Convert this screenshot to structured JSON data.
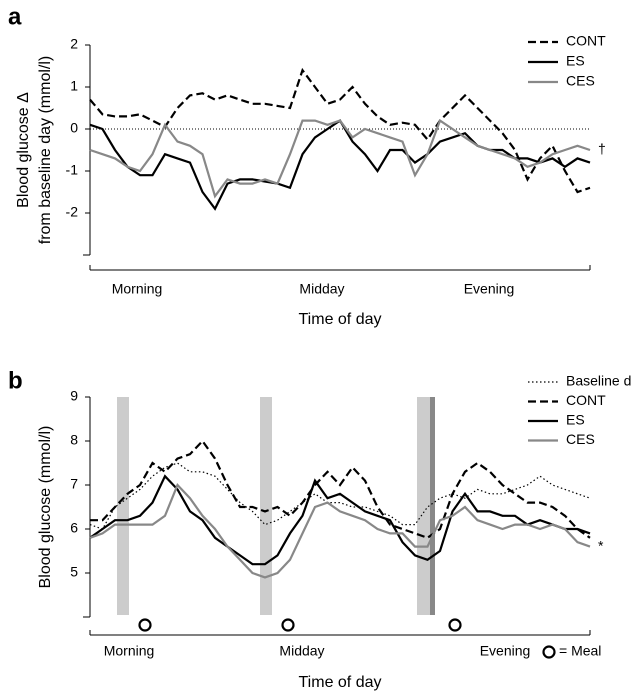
{
  "chart_data": [
    {
      "type": "line",
      "panel_label": "a",
      "ylabel": [
        "Blood glucose Δ",
        "from baseline day (mmol/l)"
      ],
      "xlabel": "Time of day",
      "xlim": [
        0,
        100
      ],
      "xticks": [
        {
          "value": 9.4,
          "label": "Morning"
        },
        {
          "value": 46.4,
          "label": "Midday"
        },
        {
          "value": 79.8,
          "label": "Evening"
        }
      ],
      "ylim": [
        -3,
        2
      ],
      "yticks": [
        -2,
        -1,
        0,
        1,
        2
      ],
      "reference_line": 0,
      "legend": "upper right",
      "annotation": "†",
      "x": [
        0,
        2.5,
        5,
        7.5,
        10,
        12.5,
        15,
        17.5,
        20,
        22.5,
        25,
        27.5,
        30,
        32.5,
        35,
        37.5,
        40,
        42.5,
        45,
        47.5,
        50,
        52.5,
        55,
        57.5,
        60,
        62.5,
        65,
        67.5,
        70,
        72.5,
        75,
        77.5,
        80,
        82.5,
        85,
        87.5,
        90,
        92.5,
        95,
        97.5,
        100
      ],
      "series": [
        {
          "name": "CONT",
          "color": "#000000",
          "dash": "dashed",
          "values": [
            0.7,
            0.35,
            0.3,
            0.3,
            0.35,
            0.2,
            0.05,
            0.5,
            0.8,
            0.85,
            0.7,
            0.8,
            0.7,
            0.6,
            0.6,
            0.55,
            0.5,
            1.4,
            1.0,
            0.6,
            0.7,
            1.0,
            0.6,
            0.3,
            0.1,
            0.15,
            0.1,
            -0.25,
            0.2,
            0.5,
            0.8,
            0.5,
            0.2,
            -0.1,
            -0.5,
            -1.2,
            -0.7,
            -0.4,
            -1.0,
            -1.5,
            -1.4
          ]
        },
        {
          "name": "ES",
          "color": "#000000",
          "dash": "solid",
          "values": [
            0.1,
            0,
            -0.5,
            -0.9,
            -1.1,
            -1.1,
            -0.6,
            -0.7,
            -0.8,
            -1.5,
            -1.9,
            -1.3,
            -1.2,
            -1.2,
            -1.25,
            -1.3,
            -1.4,
            -0.6,
            -0.2,
            0,
            0.2,
            -0.3,
            -0.6,
            -1.0,
            -0.5,
            -0.5,
            -0.8,
            -0.6,
            -0.3,
            -0.2,
            -0.1,
            -0.4,
            -0.5,
            -0.5,
            -0.7,
            -0.7,
            -0.8,
            -0.7,
            -0.9,
            -0.7,
            -0.8
          ]
        },
        {
          "name": "CES",
          "color": "#888888",
          "dash": "solid",
          "values": [
            -0.5,
            -0.6,
            -0.7,
            -0.9,
            -1.0,
            -0.6,
            0.1,
            -0.3,
            -0.4,
            -0.6,
            -1.6,
            -1.2,
            -1.3,
            -1.3,
            -1.2,
            -1.3,
            -0.6,
            0.2,
            0.2,
            0.1,
            0.2,
            -0.2,
            0,
            -0.1,
            -0.2,
            -0.3,
            -1.1,
            -0.6,
            0.2,
            0,
            -0.2,
            -0.4,
            -0.5,
            -0.6,
            -0.7,
            -0.9,
            -0.8,
            -0.6,
            -0.5,
            -0.4,
            -0.5
          ]
        }
      ]
    },
    {
      "type": "line",
      "panel_label": "b",
      "ylabel": [
        "Blood glucose (mmol/l)"
      ],
      "xlabel": "Time of day",
      "xlim": [
        0,
        100
      ],
      "xticks": [
        {
          "value": 7.8,
          "label": "Morning"
        },
        {
          "value": 42.4,
          "label": "Midday"
        },
        {
          "value": 83,
          "label": "Evening"
        }
      ],
      "ylim": [
        4,
        9
      ],
      "yticks": [
        5,
        6,
        7,
        8,
        9
      ],
      "legend": "upper right",
      "annotation": "*",
      "shaded_regions": [
        {
          "x": [
            5.4,
            7.8
          ],
          "color": "#cccccc"
        },
        {
          "x": [
            34,
            36.4
          ],
          "color": "#cccccc"
        },
        {
          "x": [
            65.4,
            68
          ],
          "color": "#cccccc"
        },
        {
          "x": [
            68,
            69
          ],
          "color": "#888888"
        }
      ],
      "meals": [
        11,
        39.6,
        73
      ],
      "meal_legend": "= Meal",
      "x": [
        0,
        2.5,
        5,
        7.5,
        10,
        12.5,
        15,
        17.5,
        20,
        22.5,
        25,
        27.5,
        30,
        32.5,
        35,
        37.5,
        40,
        42.5,
        45,
        47.5,
        50,
        52.5,
        55,
        57.5,
        60,
        62.5,
        65,
        67.5,
        70,
        72.5,
        75,
        77.5,
        80,
        82.5,
        85,
        87.5,
        90,
        92.5,
        95,
        97.5,
        100
      ],
      "series": [
        {
          "name": "Baseline day",
          "color": "#000000",
          "dash": "dotted",
          "values": [
            6.1,
            6.0,
            6.5,
            6.7,
            6.9,
            7.2,
            7.4,
            7.5,
            7.3,
            7.3,
            7.2,
            6.9,
            6.6,
            6.4,
            6.1,
            6.2,
            6.4,
            6.6,
            6.8,
            6.6,
            6.6,
            6.5,
            6.5,
            6.4,
            6.3,
            6.1,
            6.1,
            6.5,
            6.7,
            6.8,
            6.7,
            6.9,
            6.8,
            6.8,
            6.9,
            7.0,
            7.2,
            7.0,
            6.9,
            6.8,
            6.7
          ]
        },
        {
          "name": "CONT",
          "color": "#000000",
          "dash": "dashed",
          "values": [
            6.2,
            6.2,
            6.5,
            6.8,
            7.0,
            7.5,
            7.3,
            7.6,
            7.7,
            8.0,
            7.6,
            7.0,
            6.5,
            6.5,
            6.4,
            6.5,
            6.3,
            6.6,
            7.0,
            7.3,
            7.0,
            7.4,
            7.1,
            6.5,
            6.1,
            6.0,
            5.9,
            5.8,
            6.0,
            6.8,
            7.3,
            7.5,
            7.3,
            7.0,
            6.8,
            6.6,
            6.6,
            6.5,
            6.3,
            6.0,
            5.8
          ]
        },
        {
          "name": "ES",
          "color": "#000000",
          "dash": "solid",
          "values": [
            5.8,
            6.0,
            6.2,
            6.2,
            6.3,
            6.6,
            7.2,
            6.9,
            6.4,
            6.2,
            5.8,
            5.6,
            5.4,
            5.2,
            5.2,
            5.4,
            5.9,
            6.3,
            7.1,
            6.7,
            6.8,
            6.6,
            6.4,
            6.3,
            6.2,
            5.7,
            5.4,
            5.3,
            5.5,
            6.4,
            6.8,
            6.4,
            6.4,
            6.3,
            6.3,
            6.1,
            6.2,
            6.1,
            6.0,
            6.0,
            5.9
          ]
        },
        {
          "name": "CES",
          "color": "#888888",
          "dash": "solid",
          "values": [
            5.8,
            5.9,
            6.1,
            6.1,
            6.1,
            6.1,
            6.3,
            7.0,
            6.7,
            6.3,
            6.0,
            5.6,
            5.3,
            5.0,
            4.9,
            5.0,
            5.3,
            5.9,
            6.5,
            6.6,
            6.4,
            6.3,
            6.2,
            6.0,
            5.9,
            5.9,
            5.6,
            5.6,
            6.2,
            6.3,
            6.5,
            6.2,
            6.1,
            6.0,
            6.1,
            6.1,
            6.0,
            6.1,
            6.0,
            5.7,
            5.6
          ]
        }
      ]
    }
  ]
}
